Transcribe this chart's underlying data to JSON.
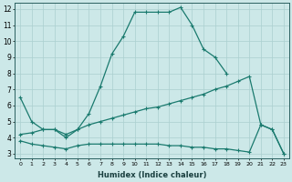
{
  "xlabel": "Humidex (Indice chaleur)",
  "xlim": [
    -0.5,
    23.5
  ],
  "ylim": [
    2.7,
    12.4
  ],
  "yticks": [
    3,
    4,
    5,
    6,
    7,
    8,
    9,
    10,
    11,
    12
  ],
  "xticks": [
    0,
    1,
    2,
    3,
    4,
    5,
    6,
    7,
    8,
    9,
    10,
    11,
    12,
    13,
    14,
    15,
    16,
    17,
    18,
    19,
    20,
    21,
    22,
    23
  ],
  "bg_color": "#cce8e8",
  "line_color": "#1a7a6e",
  "grid_color": "#aacfcf",
  "line1_x": [
    0,
    1,
    2,
    3,
    4,
    5,
    6,
    7,
    8,
    9,
    10,
    11,
    12,
    13,
    14,
    15,
    16,
    17,
    18
  ],
  "line1_y": [
    6.5,
    5.0,
    4.5,
    4.5,
    4.0,
    4.5,
    5.5,
    7.2,
    9.2,
    10.3,
    11.8,
    11.8,
    11.8,
    11.8,
    12.1,
    11.0,
    9.5,
    9.0,
    8.0
  ],
  "line2_x": [
    0,
    1,
    2,
    3,
    4,
    5,
    6,
    7,
    8,
    9,
    10,
    11,
    12,
    13,
    14,
    15,
    16,
    17,
    18,
    19,
    20,
    21,
    22,
    23
  ],
  "line2_y": [
    4.2,
    4.3,
    4.5,
    4.5,
    4.2,
    4.5,
    4.8,
    5.0,
    5.2,
    5.4,
    5.6,
    5.8,
    5.9,
    6.1,
    6.3,
    6.5,
    6.7,
    7.0,
    7.2,
    7.5,
    7.8,
    4.8,
    4.5,
    3.0
  ],
  "line3_x": [
    0,
    1,
    2,
    3,
    4,
    5,
    6,
    7,
    8,
    9,
    10,
    11,
    12,
    13,
    14,
    15,
    16,
    17,
    18,
    19,
    20,
    21,
    22,
    23
  ],
  "line3_y": [
    3.8,
    3.6,
    3.5,
    3.4,
    3.3,
    3.5,
    3.6,
    3.6,
    3.6,
    3.6,
    3.6,
    3.6,
    3.6,
    3.5,
    3.5,
    3.4,
    3.4,
    3.3,
    3.3,
    3.2,
    3.1,
    4.8,
    4.5,
    3.0
  ]
}
